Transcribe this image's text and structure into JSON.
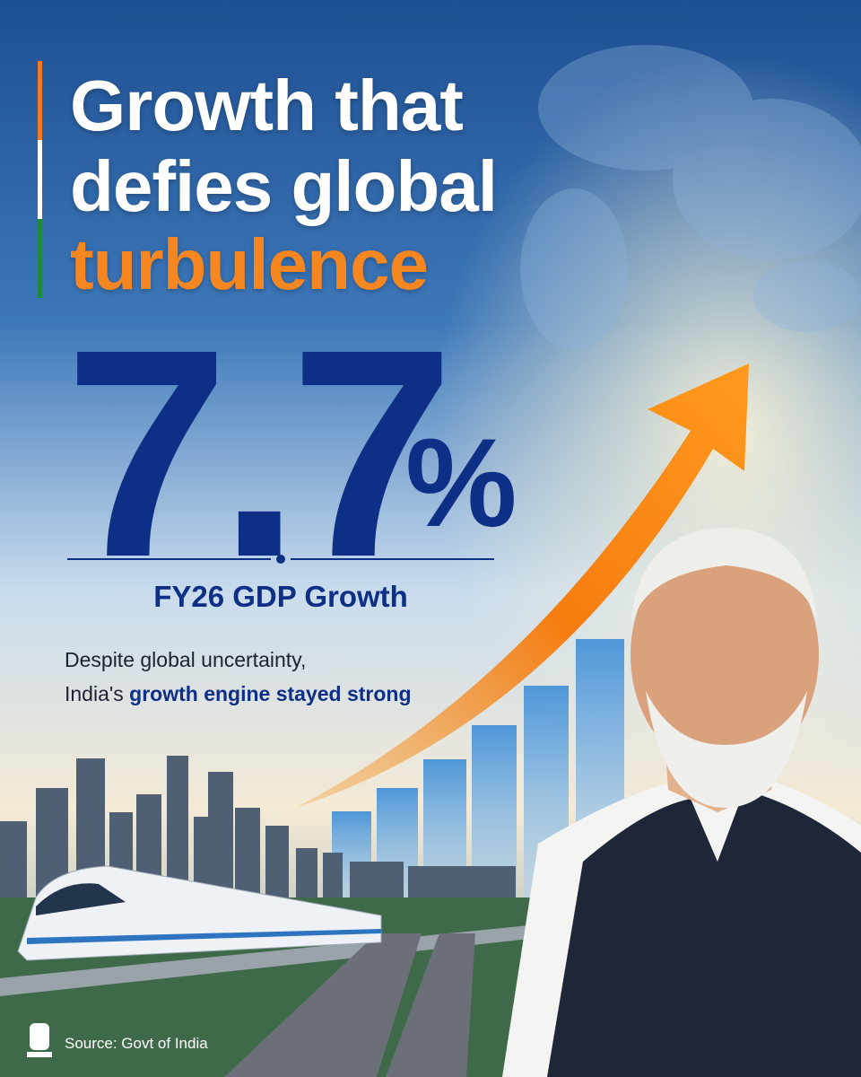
{
  "header": {
    "title_lines": [
      "Growth that",
      "defies global"
    ],
    "title_highlight": "turbulence"
  },
  "headline": {
    "value": "7.7",
    "unit": "%",
    "caption": "FY26 GDP Growth"
  },
  "description": {
    "line1": "Despite global uncertainty,",
    "line2_prefix": "India's",
    "line2_highlight": "growth engine stayed strong"
  },
  "footer": {
    "source": "Source: Govt of India"
  }
}
